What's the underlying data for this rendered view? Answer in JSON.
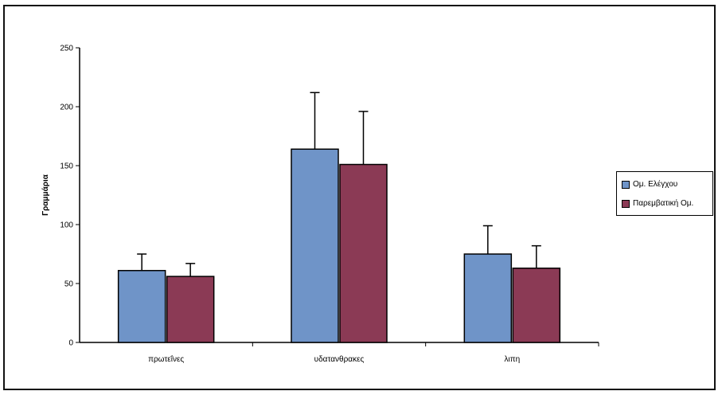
{
  "chart_data": {
    "type": "bar",
    "categories": [
      "πρωτεΐνες",
      "υδατανθρακες",
      "λιπη"
    ],
    "series": [
      {
        "name": "Ομ. Ελέγχου",
        "values": [
          61,
          164,
          75
        ],
        "errors": [
          14,
          48,
          24
        ],
        "color": "#6f94c8"
      },
      {
        "name": "Παρεμβατική Ομ.",
        "values": [
          56,
          151,
          63
        ],
        "errors": [
          11,
          45,
          19
        ],
        "color": "#8b3a55"
      }
    ],
    "ylabel": "Γραμμάρια",
    "ylim": [
      0,
      250
    ],
    "yticks": [
      0,
      50,
      100,
      150,
      200,
      250
    ],
    "grid": false,
    "legend_position": "right"
  }
}
